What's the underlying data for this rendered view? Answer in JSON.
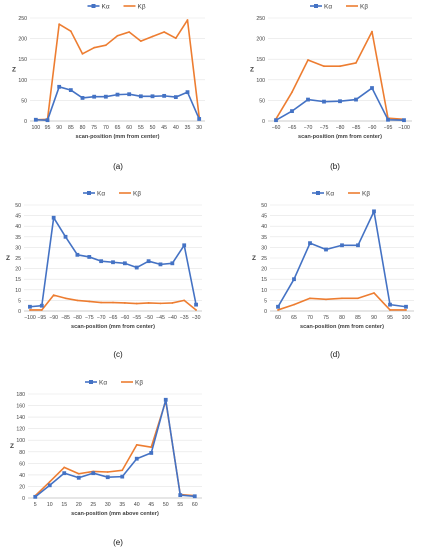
{
  "legend": {
    "series_a": "Kα",
    "series_b": "Kβ"
  },
  "colors": {
    "series_a": "#4472C4",
    "series_b": "#ED7D31",
    "grid": "#e3e3e3",
    "axis": "#bfbfbf",
    "text": "#404040"
  },
  "chart_data": [
    {
      "panel": "(a)",
      "type": "line",
      "xlabel": "scan-position (mm from center)",
      "ylabel": "Z",
      "legend_position": "top",
      "grid": true,
      "ylim": [
        0,
        250
      ],
      "yticks": [
        0,
        50,
        100,
        150,
        200,
        250
      ],
      "categories": [
        "100",
        "95",
        "90",
        "85",
        "80",
        "75",
        "70",
        "65",
        "60",
        "55",
        "50",
        "45",
        "40",
        "35",
        "30"
      ],
      "series": [
        {
          "name": "Kα",
          "values": [
            3,
            2,
            83,
            75,
            56,
            59,
            59,
            64,
            65,
            60,
            60,
            61,
            58,
            70,
            5
          ]
        },
        {
          "name": "Kβ",
          "values": [
            3,
            4,
            235,
            218,
            163,
            178,
            184,
            207,
            216,
            194,
            205,
            216,
            201,
            245,
            10
          ]
        }
      ]
    },
    {
      "panel": "(b)",
      "type": "line",
      "xlabel": "scan-position (mm from center)",
      "ylabel": "Z",
      "legend_position": "top",
      "grid": true,
      "ylim": [
        0,
        250
      ],
      "yticks": [
        0,
        50,
        100,
        150,
        200,
        250
      ],
      "categories": [
        "−60",
        "−65",
        "−70",
        "−75",
        "−80",
        "−85",
        "−90",
        "−95",
        "−100"
      ],
      "series": [
        {
          "name": "Kα",
          "values": [
            2,
            24,
            52,
            47,
            48,
            52,
            80,
            3,
            2
          ]
        },
        {
          "name": "Kβ",
          "values": [
            5,
            70,
            148,
            133,
            133,
            141,
            217,
            7,
            4
          ]
        }
      ]
    },
    {
      "panel": "(c)",
      "type": "line",
      "xlabel": "scan-position (mm from center)",
      "ylabel": "Z",
      "legend_position": "top",
      "grid": true,
      "ylim": [
        0,
        50
      ],
      "yticks": [
        0,
        5,
        10,
        15,
        20,
        25,
        30,
        35,
        40,
        45,
        50
      ],
      "categories": [
        "−100",
        "−95",
        "−90",
        "−85",
        "−80",
        "−75",
        "−70",
        "−65",
        "−60",
        "−55",
        "−50",
        "−45",
        "−40",
        "−35",
        "−30"
      ],
      "series": [
        {
          "name": "Kα",
          "values": [
            2,
            2.5,
            44,
            35,
            26.5,
            25.5,
            23.5,
            23,
            22.5,
            20.5,
            23.5,
            22,
            22.5,
            31,
            3
          ]
        },
        {
          "name": "Kβ",
          "values": [
            0.5,
            0.5,
            7.5,
            6,
            5,
            4.5,
            4,
            4,
            3.8,
            3.5,
            3.8,
            3.6,
            3.8,
            5,
            0.5
          ]
        }
      ]
    },
    {
      "panel": "(d)",
      "type": "line",
      "xlabel": "scan-position (mm from center)",
      "ylabel": "Z",
      "legend_position": "top",
      "grid": true,
      "ylim": [
        0,
        50
      ],
      "yticks": [
        0,
        5,
        10,
        15,
        20,
        25,
        30,
        35,
        40,
        45,
        50
      ],
      "categories": [
        "60",
        "65",
        "70",
        "75",
        "80",
        "85",
        "90",
        "95",
        "100"
      ],
      "series": [
        {
          "name": "Kα",
          "values": [
            2,
            15,
            32,
            29,
            31,
            31,
            47,
            3,
            2
          ]
        },
        {
          "name": "Kβ",
          "values": [
            0.5,
            3,
            6,
            5.5,
            6,
            6,
            8.5,
            0.5,
            0.5
          ]
        }
      ]
    },
    {
      "panel": "(e)",
      "type": "line",
      "xlabel": "scan-position (mm above center)",
      "ylabel": "Z",
      "legend_position": "top",
      "grid": true,
      "ylim": [
        0,
        180
      ],
      "yticks": [
        0,
        20,
        40,
        60,
        80,
        100,
        120,
        140,
        160,
        180
      ],
      "categories": [
        "5",
        "10",
        "15",
        "20",
        "25",
        "30",
        "35",
        "40",
        "45",
        "50",
        "55",
        "60"
      ],
      "series": [
        {
          "name": "Kα",
          "values": [
            2,
            22,
            43,
            35,
            43,
            36,
            37,
            68,
            78,
            170,
            5,
            3
          ]
        },
        {
          "name": "Kβ",
          "values": [
            4,
            28,
            53,
            42,
            46,
            45,
            48,
            92,
            88,
            168,
            6,
            4
          ]
        }
      ]
    }
  ]
}
